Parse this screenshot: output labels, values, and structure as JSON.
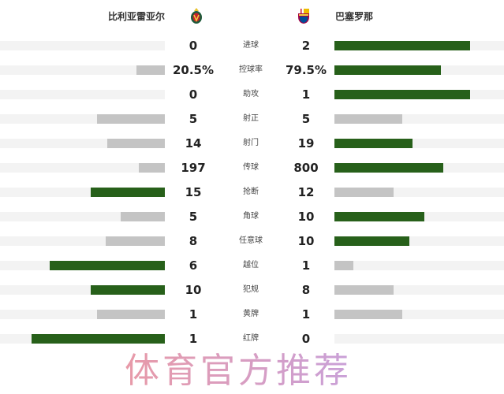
{
  "home": {
    "name": "比利亚雷亚尔",
    "logo_icon": "villarreal-crest-icon"
  },
  "away": {
    "name": "巴塞罗那",
    "logo_icon": "barcelona-crest-icon"
  },
  "colors": {
    "leader": "#27601a",
    "other": "#c4c4c4",
    "track": "#f3f3f3"
  },
  "stats": [
    {
      "label": "进球",
      "home": "0",
      "away": "2",
      "home_fill": 0,
      "away_fill": 0.8,
      "leader": "away"
    },
    {
      "label": "控球率",
      "home": "20.5%",
      "away": "79.5%",
      "home_fill": 0.17,
      "away_fill": 0.63,
      "leader": "away"
    },
    {
      "label": "助攻",
      "home": "0",
      "away": "1",
      "home_fill": 0,
      "away_fill": 0.8,
      "leader": "away"
    },
    {
      "label": "射正",
      "home": "5",
      "away": "5",
      "home_fill": 0.41,
      "away_fill": 0.4,
      "leader": "none"
    },
    {
      "label": "射门",
      "home": "14",
      "away": "19",
      "home_fill": 0.35,
      "away_fill": 0.46,
      "leader": "away"
    },
    {
      "label": "传球",
      "home": "197",
      "away": "800",
      "home_fill": 0.16,
      "away_fill": 0.64,
      "leader": "away"
    },
    {
      "label": "抢断",
      "home": "15",
      "away": "12",
      "home_fill": 0.45,
      "away_fill": 0.35,
      "leader": "home"
    },
    {
      "label": "角球",
      "home": "5",
      "away": "10",
      "home_fill": 0.27,
      "away_fill": 0.53,
      "leader": "away"
    },
    {
      "label": "任意球",
      "home": "8",
      "away": "10",
      "home_fill": 0.36,
      "away_fill": 0.44,
      "leader": "away"
    },
    {
      "label": "越位",
      "home": "6",
      "away": "1",
      "home_fill": 0.7,
      "away_fill": 0.11,
      "leader": "home"
    },
    {
      "label": "犯规",
      "home": "10",
      "away": "8",
      "home_fill": 0.45,
      "away_fill": 0.35,
      "leader": "home"
    },
    {
      "label": "黄牌",
      "home": "1",
      "away": "1",
      "home_fill": 0.41,
      "away_fill": 0.4,
      "leader": "none"
    },
    {
      "label": "红牌",
      "home": "1",
      "away": "0",
      "home_fill": 0.81,
      "away_fill": 0,
      "leader": "home"
    }
  ],
  "watermark": "体育官方推荐"
}
